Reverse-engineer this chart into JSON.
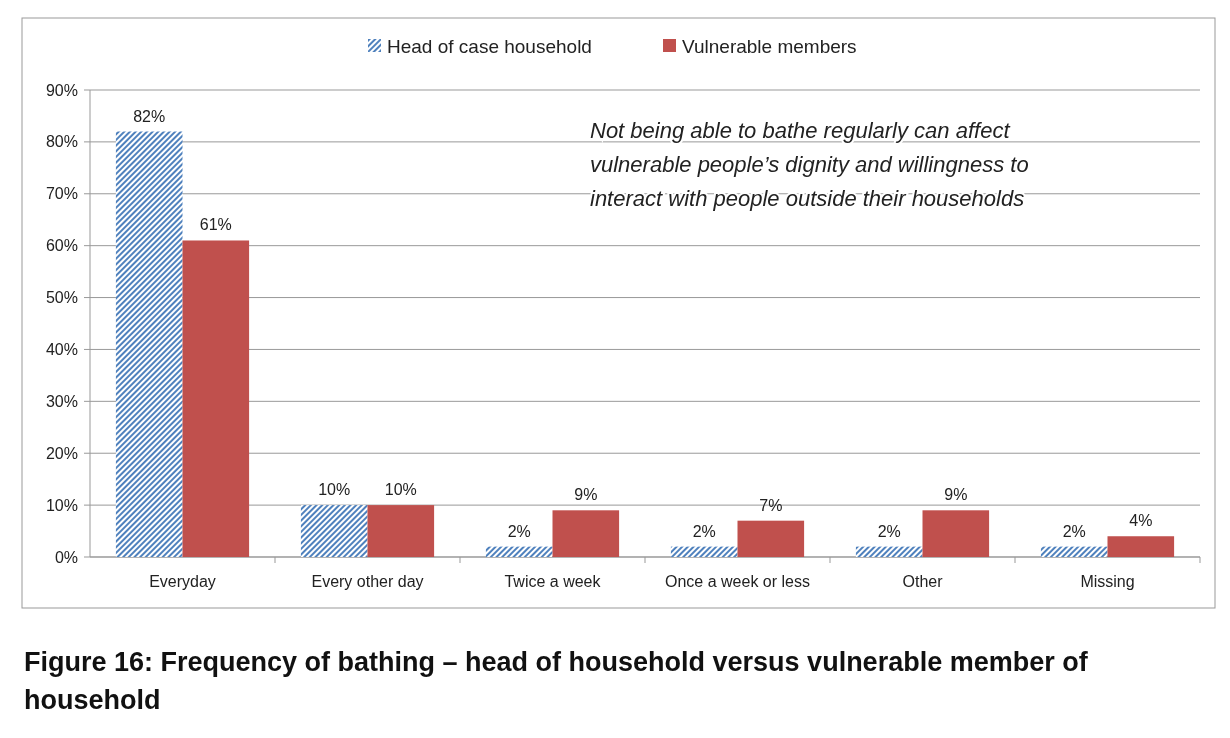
{
  "chart_data": {
    "type": "bar",
    "title": "Figure 16: Frequency of bathing – head of household versus vulnerable member of household",
    "categories": [
      "Everyday",
      "Every other day",
      "Twice a week",
      "Once a week or less",
      "Other",
      "Missing"
    ],
    "series": [
      {
        "name": "Head of case household",
        "color": "#4f81bd",
        "values": [
          82,
          10,
          2,
          2,
          2,
          2
        ]
      },
      {
        "name": "Vulnerable members",
        "color": "#c0504d",
        "values": [
          61,
          10,
          9,
          7,
          9,
          4
        ]
      }
    ],
    "ylim": [
      0,
      90
    ],
    "yticks": [
      {
        "value": 0,
        "label": "0%"
      },
      {
        "value": 10,
        "label": "10%"
      },
      {
        "value": 20,
        "label": "20%"
      },
      {
        "value": 30,
        "label": "30%"
      },
      {
        "value": 40,
        "label": "40%"
      },
      {
        "value": 50,
        "label": "50%"
      },
      {
        "value": 60,
        "label": "60%"
      },
      {
        "value": 70,
        "label": "70%"
      },
      {
        "value": 80,
        "label": "80%"
      },
      {
        "value": 90,
        "label": "90%"
      }
    ],
    "value_labels": [
      [
        "82%",
        "10%",
        "2%",
        "2%",
        "2%",
        "2%"
      ],
      [
        "61%",
        "10%",
        "9%",
        "7%",
        "9%",
        "4%"
      ]
    ],
    "annotations": [
      "Not being able to bathe regularly can affect vulnerable people’s dignity and willingness to interact with people outside their households"
    ],
    "grid": "y",
    "legend": "top"
  }
}
